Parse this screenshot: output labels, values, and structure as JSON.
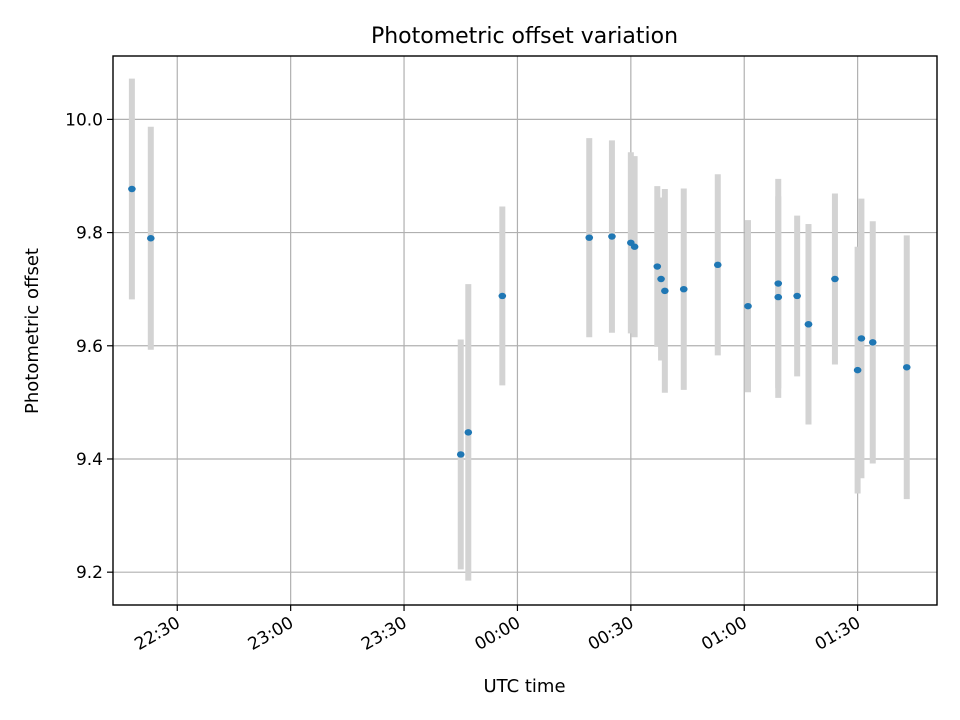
{
  "chart_data": {
    "type": "scatter",
    "title": "Photometric offset variation",
    "xlabel": "UTC time",
    "ylabel": "Photometric offset",
    "x_axis_type": "time",
    "xlim": [
      "22:13",
      "01:51"
    ],
    "ylim": [
      9.142,
      10.112
    ],
    "grid": true,
    "colors": {
      "points": "#1f77b4",
      "errorbars": "#d3d3d3"
    },
    "x_ticks": [
      {
        "t": "22:30",
        "label": "22:30"
      },
      {
        "t": "23:00",
        "label": "23:00"
      },
      {
        "t": "23:30",
        "label": "23:30"
      },
      {
        "t": "00:00",
        "label": "00:00"
      },
      {
        "t": "00:30",
        "label": "00:30"
      },
      {
        "t": "01:00",
        "label": "01:00"
      },
      {
        "t": "01:30",
        "label": "01:30"
      }
    ],
    "y_ticks": [
      {
        "v": 9.2,
        "label": "9.2"
      },
      {
        "v": 9.4,
        "label": "9.4"
      },
      {
        "v": 9.6,
        "label": "9.6"
      },
      {
        "v": 9.8,
        "label": "9.8"
      },
      {
        "v": 10.0,
        "label": "10.0"
      }
    ],
    "points": [
      {
        "t": "22:18",
        "y": 9.877,
        "err": 0.195
      },
      {
        "t": "22:23",
        "y": 9.79,
        "err": 0.197
      },
      {
        "t": "23:45",
        "y": 9.408,
        "err": 0.203
      },
      {
        "t": "23:47",
        "y": 9.447,
        "err": 0.262
      },
      {
        "t": "23:56",
        "y": 9.688,
        "err": 0.158
      },
      {
        "t": "00:19",
        "y": 9.791,
        "err": 0.176
      },
      {
        "t": "00:25",
        "y": 9.793,
        "err": 0.17
      },
      {
        "t": "00:30",
        "y": 9.782,
        "err": 0.16
      },
      {
        "t": "00:31",
        "y": 9.775,
        "err": 0.16
      },
      {
        "t": "00:37",
        "y": 9.74,
        "err": 0.142
      },
      {
        "t": "00:38",
        "y": 9.718,
        "err": 0.144
      },
      {
        "t": "00:39",
        "y": 9.697,
        "err": 0.18
      },
      {
        "t": "00:44",
        "y": 9.7,
        "err": 0.178
      },
      {
        "t": "00:53",
        "y": 9.743,
        "err": 0.16
      },
      {
        "t": "01:01",
        "y": 9.67,
        "err": 0.152
      },
      {
        "t": "01:09",
        "y": 9.71,
        "err": 0.185
      },
      {
        "t": "01:09",
        "y": 9.686,
        "err": 0.178
      },
      {
        "t": "01:14",
        "y": 9.688,
        "err": 0.142
      },
      {
        "t": "01:17",
        "y": 9.638,
        "err": 0.177
      },
      {
        "t": "01:17",
        "y": 9.638,
        "err": 0.177
      },
      {
        "t": "01:24",
        "y": 9.718,
        "err": 0.151
      },
      {
        "t": "01:30",
        "y": 9.557,
        "err": 0.218
      },
      {
        "t": "01:31",
        "y": 9.613,
        "err": 0.247
      },
      {
        "t": "01:34",
        "y": 9.606,
        "err": 0.214
      },
      {
        "t": "01:43",
        "y": 9.562,
        "err": 0.233
      }
    ]
  }
}
